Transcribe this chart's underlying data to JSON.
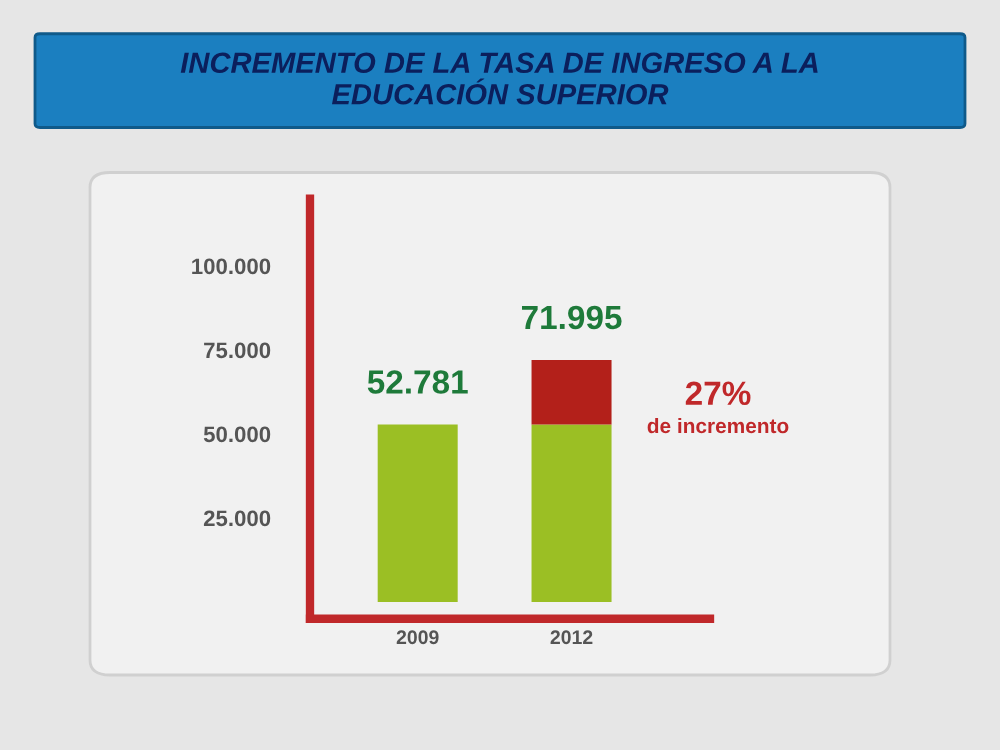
{
  "chart_data": {
    "type": "bar",
    "title": "INCREMENTO DE LA TASA DE INGRESO A LA\nEDUCACIÓN SUPERIOR",
    "categories": [
      "2009",
      "2012"
    ],
    "stacked": true,
    "series": [
      {
        "color": "#9bbf24",
        "values": [
          52781,
          52781
        ]
      },
      {
        "color": "#b3201a",
        "values": [
          null,
          19214
        ]
      }
    ],
    "totals": [
      "52.781",
      "71.995"
    ],
    "annotations": [
      "27%",
      "de incremento"
    ],
    "ylim": [
      -5000,
      120000
    ],
    "yticks": [
      {
        "value": 25000,
        "label": "25.000"
      },
      {
        "value": 50000,
        "label": "50.000"
      },
      {
        "value": 75000,
        "label": "75.000"
      },
      {
        "value": 100000,
        "label": "100.000"
      }
    ],
    "grid": false,
    "legend": false
  }
}
